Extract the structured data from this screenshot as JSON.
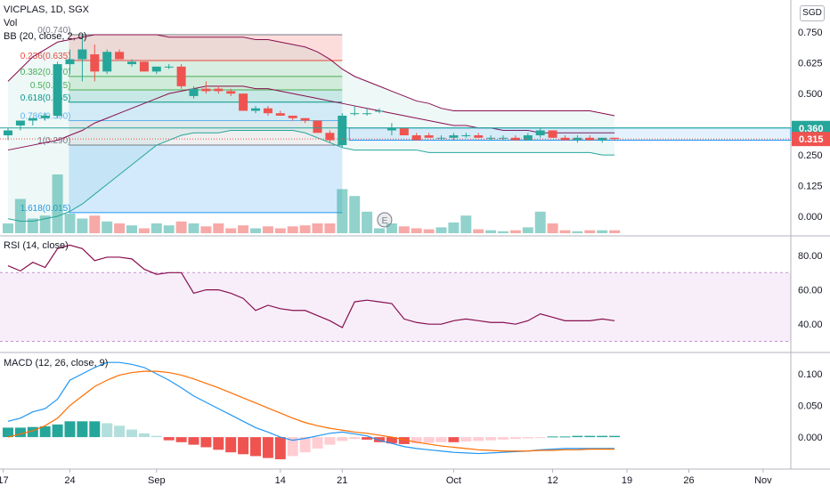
{
  "header": {
    "symbol_line": "VICPLAS, 1D, SGX",
    "vol_label": "Vol",
    "bb_label": "BB (20, close, 2, 0)",
    "currency": "SGD"
  },
  "price_badges": [
    {
      "value": "0.360",
      "color": "#26a69a"
    },
    {
      "value": "0.315",
      "color": "#ef5350"
    }
  ],
  "colors": {
    "up": "#26a69a",
    "down": "#ef5350",
    "bb_band": "#26a69a",
    "bb_basis": "#880e4f",
    "rsi": "#9c27b0",
    "macd": "#2196f3",
    "signal": "#ff6d00"
  },
  "chart_data": [
    {
      "type": "candlestick",
      "panel": "price",
      "title": "VICPLAS, 1D, SGX",
      "ylim": [
        -0.06,
        0.78
      ],
      "y_ticks": [
        "0.750",
        "0.625",
        "0.500",
        "0.375",
        "0.250",
        "0.125",
        "0.000"
      ],
      "y_tick_values": [
        0.75,
        0.625,
        0.5,
        0.375,
        0.25,
        0.125,
        0.0
      ],
      "x_ticks": [
        "17",
        "24",
        "Sep",
        "14",
        "21",
        "Oct",
        "12",
        "19",
        "26",
        "Nov"
      ],
      "x_tick_index": [
        -0.4,
        5,
        12,
        22,
        27,
        36,
        44,
        50,
        55,
        61
      ],
      "candles": [
        {
          "o": 0.33,
          "h": 0.36,
          "l": 0.31,
          "c": 0.35
        },
        {
          "o": 0.37,
          "h": 0.39,
          "l": 0.35,
          "c": 0.39
        },
        {
          "o": 0.39,
          "h": 0.4,
          "l": 0.37,
          "c": 0.4
        },
        {
          "o": 0.4,
          "h": 0.42,
          "l": 0.39,
          "c": 0.41
        },
        {
          "o": 0.41,
          "h": 0.63,
          "l": 0.4,
          "c": 0.62
        },
        {
          "o": 0.62,
          "h": 0.68,
          "l": 0.58,
          "c": 0.64
        },
        {
          "o": 0.64,
          "h": 0.74,
          "l": 0.55,
          "c": 0.68
        },
        {
          "o": 0.66,
          "h": 0.7,
          "l": 0.55,
          "c": 0.59
        },
        {
          "o": 0.59,
          "h": 0.68,
          "l": 0.58,
          "c": 0.67
        },
        {
          "o": 0.67,
          "h": 0.68,
          "l": 0.64,
          "c": 0.64
        },
        {
          "o": 0.62,
          "h": 0.64,
          "l": 0.61,
          "c": 0.63
        },
        {
          "o": 0.63,
          "h": 0.63,
          "l": 0.59,
          "c": 0.59
        },
        {
          "o": 0.59,
          "h": 0.61,
          "l": 0.58,
          "c": 0.61
        },
        {
          "o": 0.61,
          "h": 0.62,
          "l": 0.6,
          "c": 0.61
        },
        {
          "o": 0.61,
          "h": 0.62,
          "l": 0.52,
          "c": 0.53
        },
        {
          "o": 0.49,
          "h": 0.53,
          "l": 0.48,
          "c": 0.52
        },
        {
          "o": 0.52,
          "h": 0.55,
          "l": 0.5,
          "c": 0.51
        },
        {
          "o": 0.52,
          "h": 0.53,
          "l": 0.5,
          "c": 0.51
        },
        {
          "o": 0.51,
          "h": 0.52,
          "l": 0.49,
          "c": 0.5
        },
        {
          "o": 0.5,
          "h": 0.5,
          "l": 0.43,
          "c": 0.43
        },
        {
          "o": 0.43,
          "h": 0.45,
          "l": 0.42,
          "c": 0.44
        },
        {
          "o": 0.44,
          "h": 0.45,
          "l": 0.41,
          "c": 0.42
        },
        {
          "o": 0.42,
          "h": 0.43,
          "l": 0.41,
          "c": 0.41
        },
        {
          "o": 0.41,
          "h": 0.41,
          "l": 0.39,
          "c": 0.4
        },
        {
          "o": 0.4,
          "h": 0.4,
          "l": 0.38,
          "c": 0.39
        },
        {
          "o": 0.39,
          "h": 0.39,
          "l": 0.34,
          "c": 0.34
        },
        {
          "o": 0.34,
          "h": 0.35,
          "l": 0.3,
          "c": 0.31
        },
        {
          "o": 0.29,
          "h": 0.42,
          "l": 0.28,
          "c": 0.41
        },
        {
          "o": 0.42,
          "h": 0.45,
          "l": 0.41,
          "c": 0.42
        },
        {
          "o": 0.42,
          "h": 0.44,
          "l": 0.41,
          "c": 0.42
        },
        {
          "o": 0.43,
          "h": 0.44,
          "l": 0.42,
          "c": 0.43
        },
        {
          "o": 0.35,
          "h": 0.38,
          "l": 0.33,
          "c": 0.36
        },
        {
          "o": 0.36,
          "h": 0.36,
          "l": 0.33,
          "c": 0.33
        },
        {
          "o": 0.33,
          "h": 0.34,
          "l": 0.31,
          "c": 0.31
        },
        {
          "o": 0.33,
          "h": 0.34,
          "l": 0.32,
          "c": 0.32
        },
        {
          "o": 0.32,
          "h": 0.33,
          "l": 0.31,
          "c": 0.32
        },
        {
          "o": 0.32,
          "h": 0.34,
          "l": 0.31,
          "c": 0.33
        },
        {
          "o": 0.33,
          "h": 0.34,
          "l": 0.32,
          "c": 0.33
        },
        {
          "o": 0.33,
          "h": 0.34,
          "l": 0.32,
          "c": 0.32
        },
        {
          "o": 0.32,
          "h": 0.33,
          "l": 0.31,
          "c": 0.32
        },
        {
          "o": 0.32,
          "h": 0.33,
          "l": 0.31,
          "c": 0.32
        },
        {
          "o": 0.32,
          "h": 0.33,
          "l": 0.31,
          "c": 0.31
        },
        {
          "o": 0.31,
          "h": 0.34,
          "l": 0.31,
          "c": 0.33
        },
        {
          "o": 0.33,
          "h": 0.36,
          "l": 0.32,
          "c": 0.35
        },
        {
          "o": 0.35,
          "h": 0.35,
          "l": 0.32,
          "c": 0.32
        },
        {
          "o": 0.32,
          "h": 0.33,
          "l": 0.31,
          "c": 0.31
        },
        {
          "o": 0.31,
          "h": 0.33,
          "l": 0.3,
          "c": 0.32
        },
        {
          "o": 0.32,
          "h": 0.33,
          "l": 0.31,
          "c": 0.31
        },
        {
          "o": 0.31,
          "h": 0.32,
          "l": 0.3,
          "c": 0.32
        },
        {
          "o": 0.32,
          "h": 0.32,
          "l": 0.31,
          "c": 0.315
        }
      ],
      "bb_upper": [
        0.55,
        0.6,
        0.65,
        0.68,
        0.71,
        0.72,
        0.73,
        0.74,
        0.74,
        0.74,
        0.74,
        0.74,
        0.74,
        0.73,
        0.73,
        0.73,
        0.73,
        0.73,
        0.73,
        0.73,
        0.72,
        0.72,
        0.71,
        0.7,
        0.69,
        0.67,
        0.64,
        0.6,
        0.57,
        0.55,
        0.53,
        0.51,
        0.49,
        0.47,
        0.46,
        0.44,
        0.43,
        0.43,
        0.43,
        0.43,
        0.43,
        0.43,
        0.43,
        0.43,
        0.43,
        0.43,
        0.43,
        0.43,
        0.42,
        0.41
      ],
      "bb_basis": [
        0.27,
        0.28,
        0.29,
        0.3,
        0.31,
        0.33,
        0.35,
        0.38,
        0.4,
        0.42,
        0.44,
        0.46,
        0.48,
        0.5,
        0.51,
        0.52,
        0.53,
        0.53,
        0.53,
        0.53,
        0.52,
        0.52,
        0.51,
        0.5,
        0.49,
        0.48,
        0.47,
        0.46,
        0.45,
        0.44,
        0.43,
        0.42,
        0.41,
        0.4,
        0.39,
        0.38,
        0.37,
        0.37,
        0.36,
        0.36,
        0.35,
        0.35,
        0.35,
        0.34,
        0.34,
        0.34,
        0.34,
        0.34,
        0.34,
        0.34
      ],
      "bb_lower": [
        -0.01,
        -0.02,
        -0.02,
        -0.01,
        0.0,
        0.02,
        0.05,
        0.09,
        0.13,
        0.17,
        0.21,
        0.25,
        0.29,
        0.31,
        0.33,
        0.34,
        0.34,
        0.34,
        0.35,
        0.35,
        0.35,
        0.35,
        0.35,
        0.35,
        0.34,
        0.32,
        0.3,
        0.28,
        0.27,
        0.27,
        0.27,
        0.27,
        0.27,
        0.27,
        0.26,
        0.26,
        0.26,
        0.26,
        0.26,
        0.26,
        0.26,
        0.26,
        0.26,
        0.26,
        0.26,
        0.26,
        0.26,
        0.26,
        0.25,
        0.25
      ],
      "volume": [
        1.0,
        3.5,
        1.5,
        1.8,
        6.0,
        2.0,
        1.5,
        1.8,
        1.2,
        1.0,
        0.8,
        0.5,
        1.0,
        0.8,
        1.2,
        1.0,
        0.7,
        1.0,
        0.5,
        0.8,
        0.5,
        0.7,
        0.5,
        0.7,
        0.8,
        1.0,
        1.0,
        4.5,
        3.8,
        2.2,
        0.5,
        1.0,
        0.7,
        0.5,
        0.4,
        0.6,
        1.1,
        1.8,
        0.4,
        0.3,
        0.2,
        0.3,
        0.6,
        2.2,
        1.0,
        0.3,
        0.2,
        0.3,
        0.3,
        0.3
      ],
      "fib_levels": [
        {
          "label": "0(0.740)",
          "value": 0.74,
          "color": "#787b86"
        },
        {
          "label": "0.236(0.635)",
          "value": 0.635,
          "color": "#f44336"
        },
        {
          "label": "0.382(0.570)",
          "value": 0.57,
          "color": "#4caf50"
        },
        {
          "label": "0.5(0.515)",
          "value": 0.515,
          "color": "#4caf50"
        },
        {
          "label": "0.618(0.465)",
          "value": 0.465,
          "color": "#009688"
        },
        {
          "label": "0.786(0.390)",
          "value": 0.39,
          "color": "#64b5f6"
        },
        {
          "label": "1(0.290)",
          "value": 0.29,
          "color": "#787b86"
        },
        {
          "label": "1.618(0.015)",
          "value": 0.015,
          "color": "#2196f3"
        }
      ],
      "fib_start_index": 5,
      "fib_end_index": 27,
      "range_box": {
        "from_index": 28,
        "low": 0.31,
        "high": 0.36
      },
      "event_marker": {
        "label": "E",
        "index": 31
      }
    },
    {
      "type": "line",
      "panel": "rsi",
      "title": "RSI (14, close)",
      "ylim": [
        25,
        95
      ],
      "bands": [
        30,
        70
      ],
      "y_ticks": [
        "80.00",
        "60.00",
        "40.00"
      ],
      "y_tick_values": [
        80,
        60,
        40
      ],
      "series": [
        {
          "name": "RSI",
          "values": [
            74,
            71,
            76,
            73,
            84,
            86,
            84,
            77,
            79,
            79,
            78,
            72,
            69,
            70,
            70,
            58,
            60,
            60,
            58,
            55,
            48,
            51,
            49,
            48,
            48,
            45,
            42,
            38,
            53,
            54,
            53,
            52,
            43,
            41,
            40,
            40,
            42,
            43,
            42,
            41,
            41,
            40,
            42,
            46,
            44,
            42,
            42,
            42,
            43,
            42
          ]
        }
      ]
    },
    {
      "type": "line",
      "panel": "macd",
      "title": "MACD (12, 26, close, 9)",
      "ylim": [
        -0.04,
        0.125
      ],
      "y_ticks": [
        "0.100",
        "0.050",
        "0.000"
      ],
      "y_tick_values": [
        0.1,
        0.05,
        0.0
      ],
      "series": [
        {
          "name": "MACD",
          "values": [
            0.025,
            0.03,
            0.04,
            0.045,
            0.06,
            0.09,
            0.1,
            0.11,
            0.118,
            0.118,
            0.115,
            0.11,
            0.1,
            0.09,
            0.078,
            0.065,
            0.055,
            0.045,
            0.035,
            0.025,
            0.015,
            0.008,
            0.0,
            -0.005,
            -0.002,
            0.002,
            0.006,
            0.008,
            0.005,
            0.002,
            -0.005,
            -0.01,
            -0.015,
            -0.018,
            -0.02,
            -0.022,
            -0.024,
            -0.025,
            -0.026,
            -0.025,
            -0.024,
            -0.023,
            -0.022,
            -0.02,
            -0.019,
            -0.018,
            -0.018,
            -0.018,
            -0.018,
            -0.018
          ]
        },
        {
          "name": "Signal",
          "values": [
            0.0,
            0.005,
            0.01,
            0.018,
            0.03,
            0.05,
            0.065,
            0.08,
            0.09,
            0.098,
            0.102,
            0.104,
            0.104,
            0.102,
            0.098,
            0.092,
            0.085,
            0.078,
            0.07,
            0.062,
            0.054,
            0.046,
            0.038,
            0.03,
            0.023,
            0.018,
            0.014,
            0.011,
            0.008,
            0.006,
            0.003,
            0.0,
            -0.004,
            -0.008,
            -0.011,
            -0.014,
            -0.016,
            -0.018,
            -0.02,
            -0.021,
            -0.022,
            -0.022,
            -0.022,
            -0.021,
            -0.021,
            -0.02,
            -0.02,
            -0.019,
            -0.019,
            -0.019
          ]
        }
      ],
      "histogram": [
        0.015,
        0.015,
        0.016,
        0.017,
        0.02,
        0.025,
        0.025,
        0.025,
        0.022,
        0.018,
        0.012,
        0.006,
        0.002,
        -0.005,
        -0.008,
        -0.012,
        -0.016,
        -0.02,
        -0.024,
        -0.027,
        -0.03,
        -0.033,
        -0.035,
        -0.03,
        -0.024,
        -0.018,
        -0.012,
        -0.006,
        -0.003,
        -0.004,
        -0.008,
        -0.01,
        -0.011,
        -0.01,
        -0.009,
        -0.008,
        -0.008,
        -0.007,
        -0.006,
        -0.005,
        -0.004,
        -0.003,
        -0.002,
        -0.001,
        0.001,
        0.001,
        0.002,
        0.002,
        0.002,
        0.002
      ]
    }
  ]
}
